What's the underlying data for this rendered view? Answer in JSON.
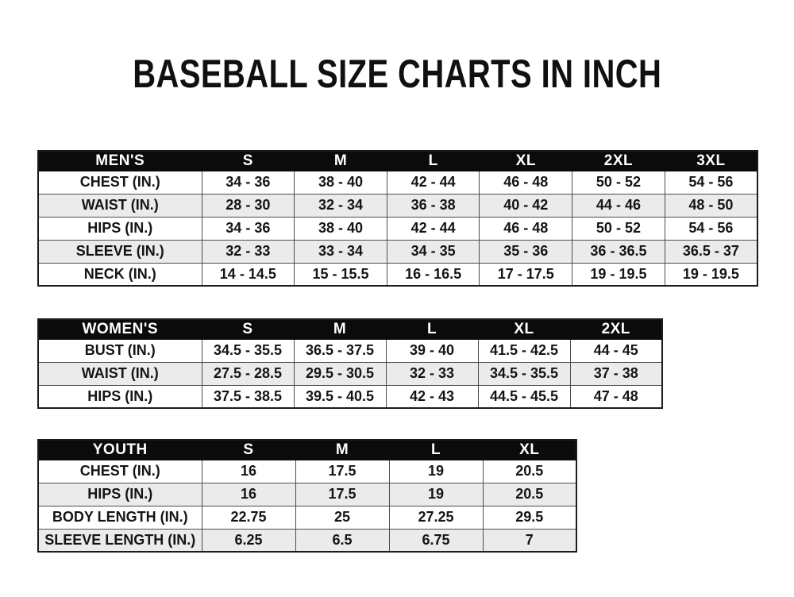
{
  "page_title": "BASEBALL SIZE CHARTS IN INCH",
  "colors": {
    "background": "#ffffff",
    "header_bar": "#0b0b0b",
    "header_text": "#ffffff",
    "body_text": "#151515",
    "stripe": "#ebebeb",
    "grid_line": "#4d4d4d",
    "outer_border": "#1b1b1b"
  },
  "chart_data": [
    {
      "type": "table",
      "id": "mens",
      "title": "MEN'S",
      "header": [
        "MEN'S",
        "S",
        "M",
        "L",
        "XL",
        "2XL",
        "3XL"
      ],
      "rows": [
        {
          "label": "CHEST (IN.)",
          "values": [
            "34 - 36",
            "38 - 40",
            "42 - 44",
            "46 - 48",
            "50 - 52",
            "54 - 56"
          ]
        },
        {
          "label": "WAIST (IN.)",
          "values": [
            "28 - 30",
            "32 - 34",
            "36 - 38",
            "40 - 42",
            "44 - 46",
            "48 - 50"
          ]
        },
        {
          "label": "HIPS (IN.)",
          "values": [
            "34 - 36",
            "38 - 40",
            "42 - 44",
            "46 - 48",
            "50 - 52",
            "54 - 56"
          ]
        },
        {
          "label": "SLEEVE (IN.)",
          "values": [
            "32 - 33",
            "33 - 34",
            "34 - 35",
            "35 - 36",
            "36 - 36.5",
            "36.5 - 37"
          ]
        },
        {
          "label": "NECK (IN.)",
          "values": [
            "14 - 14.5",
            "15 - 15.5",
            "16 - 16.5",
            "17 - 17.5",
            "19 - 19.5",
            "19 - 19.5"
          ]
        }
      ]
    },
    {
      "type": "table",
      "id": "womens",
      "title": "WOMEN'S",
      "header": [
        "WOMEN'S",
        "S",
        "M",
        "L",
        "XL",
        "2XL"
      ],
      "rows": [
        {
          "label": "BUST (IN.)",
          "values": [
            "34.5 - 35.5",
            "36.5 - 37.5",
            "39 - 40",
            "41.5 - 42.5",
            "44 - 45"
          ]
        },
        {
          "label": "WAIST (IN.)",
          "values": [
            "27.5 - 28.5",
            "29.5 - 30.5",
            "32 - 33",
            "34.5 - 35.5",
            "37 - 38"
          ]
        },
        {
          "label": "HIPS (IN.)",
          "values": [
            "37.5 - 38.5",
            "39.5 - 40.5",
            "42 - 43",
            "44.5 - 45.5",
            "47 - 48"
          ]
        }
      ]
    },
    {
      "type": "table",
      "id": "youth",
      "title": "YOUTH",
      "header": [
        "YOUTH",
        "S",
        "M",
        "L",
        "XL"
      ],
      "rows": [
        {
          "label": "CHEST (IN.)",
          "values": [
            "16",
            "17.5",
            "19",
            "20.5"
          ]
        },
        {
          "label": "HIPS (IN.)",
          "values": [
            "16",
            "17.5",
            "19",
            "20.5"
          ]
        },
        {
          "label": "BODY LENGTH (IN.)",
          "values": [
            "22.75",
            "25",
            "27.25",
            "29.5"
          ]
        },
        {
          "label": "SLEEVE LENGTH (IN.)",
          "values": [
            "6.25",
            "6.5",
            "6.75",
            "7"
          ]
        }
      ]
    }
  ]
}
